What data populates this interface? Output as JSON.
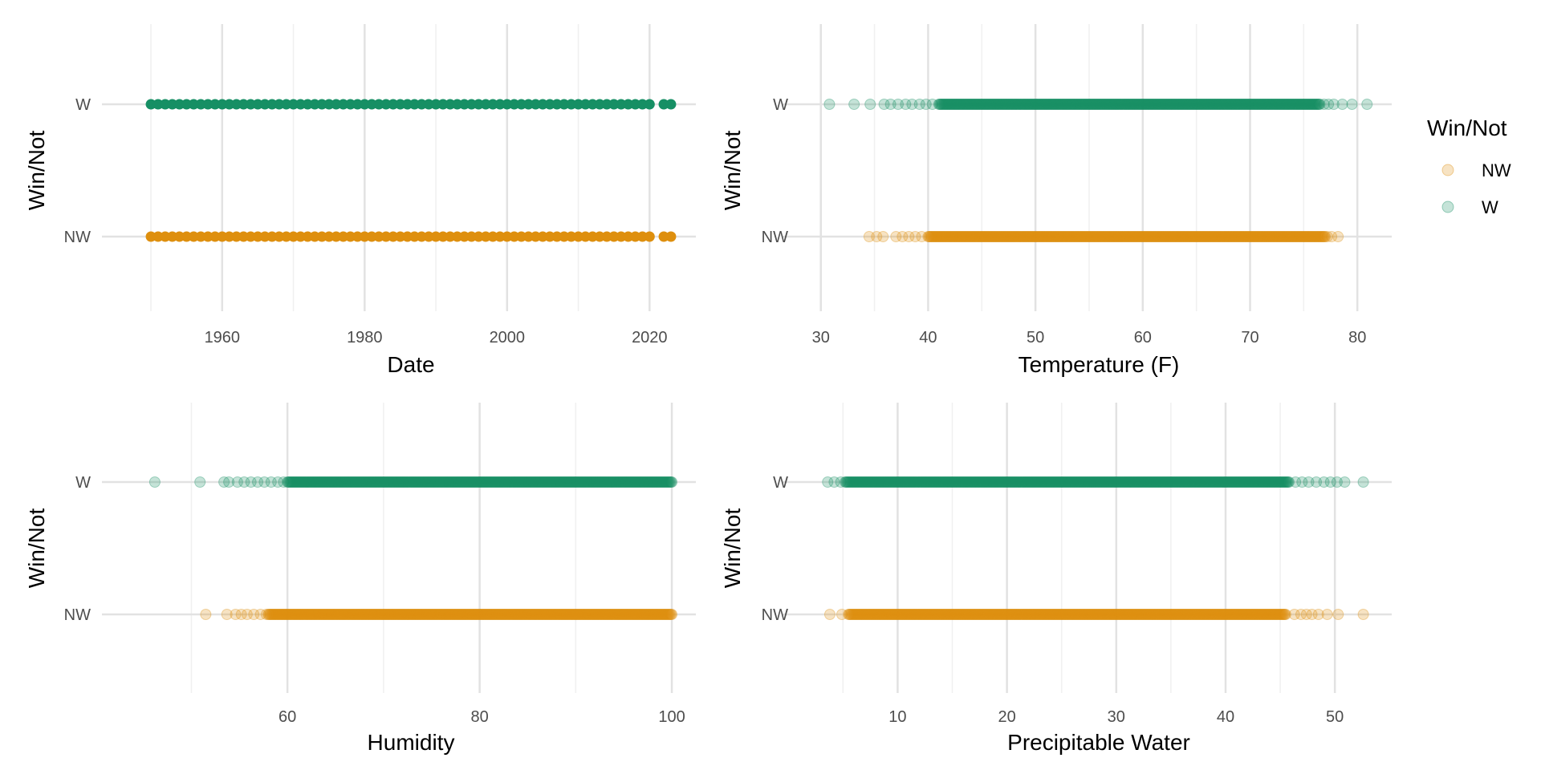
{
  "colors": {
    "NW": "#DE8F0E",
    "W": "#168F64",
    "grid_major": "#E2E2E2",
    "grid_minor": "#F0F0F0"
  },
  "legend": {
    "title": "Win/Not",
    "items": [
      {
        "key": "NW",
        "label": "NW"
      },
      {
        "key": "W",
        "label": "W"
      }
    ]
  },
  "chart_data": [
    {
      "type": "scatter",
      "title": "",
      "xlabel": "Date",
      "ylabel": "Win/Not",
      "categories": [
        "NW",
        "W"
      ],
      "xlim": [
        1946.5,
        2026.5
      ],
      "xticks": [
        1960,
        1980,
        2000,
        2020
      ],
      "xtick_labels": [
        "1960",
        "1980",
        "2000",
        "2020"
      ],
      "x_minor": [
        1950,
        1970,
        1990,
        2010
      ],
      "grid": true,
      "series": [
        {
          "name": "NW",
          "range": [
            1950,
            2023
          ],
          "step": 1,
          "gap": [
            2020.3,
            2021.7
          ],
          "alpha": 1.0
        },
        {
          "name": "W",
          "range": [
            1950,
            2023
          ],
          "step": 1,
          "gap": [
            2020.3,
            2021.7
          ],
          "alpha": 1.0
        }
      ]
    },
    {
      "type": "scatter",
      "title": "",
      "xlabel": "Temperature (F)",
      "ylabel": "Win/Not",
      "categories": [
        "NW",
        "W"
      ],
      "xlim": [
        28.6,
        83.2
      ],
      "xticks": [
        30,
        40,
        50,
        60,
        70,
        80
      ],
      "xtick_labels": [
        "30",
        "40",
        "50",
        "60",
        "70",
        "80"
      ],
      "x_minor": [
        35,
        45,
        55,
        65,
        75
      ],
      "grid": true,
      "series": [
        {
          "name": "NW",
          "dense_range": [
            40,
            77
          ],
          "sparse_points": [
            34.5,
            35.2,
            35.8,
            37.0,
            37.6,
            38.2,
            38.8,
            39.4,
            77.2,
            77.6,
            78.2
          ],
          "alpha": 0.25
        },
        {
          "name": "W",
          "dense_range": [
            41,
            76.5
          ],
          "sparse_points": [
            30.8,
            33.1,
            34.6,
            35.9,
            36.5,
            37.2,
            37.9,
            38.5,
            39.2,
            39.8,
            40.4,
            76.9,
            77.3,
            77.8,
            78.6,
            79.5,
            80.9
          ],
          "alpha": 0.25
        }
      ]
    },
    {
      "type": "scatter",
      "title": "",
      "xlabel": "Humidity",
      "ylabel": "Win/Not",
      "categories": [
        "NW",
        "W"
      ],
      "xlim": [
        43.2,
        102.5
      ],
      "xticks": [
        60,
        80,
        100
      ],
      "xtick_labels": [
        "60",
        "80",
        "100"
      ],
      "x_minor": [
        50,
        70,
        90
      ],
      "grid": true,
      "series": [
        {
          "name": "NW",
          "dense_range": [
            58,
            100
          ],
          "sparse_points": [
            51.5,
            53.7,
            54.6,
            55.2,
            55.8,
            56.5,
            57.2,
            57.8
          ],
          "alpha": 0.25
        },
        {
          "name": "W",
          "dense_range": [
            60,
            100
          ],
          "sparse_points": [
            46.2,
            50.9,
            53.4,
            53.9,
            54.8,
            55.5,
            56.2,
            56.9,
            57.6,
            58.3,
            59.0,
            59.6
          ],
          "alpha": 0.25
        }
      ]
    },
    {
      "type": "scatter",
      "title": "",
      "xlabel": "Precipitable Water",
      "ylabel": "Win/Not",
      "categories": [
        "NW",
        "W"
      ],
      "xlim": [
        1.6,
        55.2
      ],
      "xticks": [
        10,
        20,
        30,
        40,
        50
      ],
      "xtick_labels": [
        "10",
        "20",
        "30",
        "40",
        "50"
      ],
      "x_minor": [
        5,
        15,
        25,
        35,
        45
      ],
      "grid": true,
      "series": [
        {
          "name": "NW",
          "dense_range": [
            5.5,
            45.5
          ],
          "sparse_points": [
            3.8,
            4.9,
            46.3,
            46.9,
            47.4,
            47.9,
            48.5,
            49.3,
            50.3,
            52.6
          ],
          "alpha": 0.25
        },
        {
          "name": "W",
          "dense_range": [
            5.2,
            45.8
          ],
          "sparse_points": [
            3.6,
            4.2,
            4.8,
            46.4,
            47.0,
            47.6,
            48.3,
            49.0,
            49.6,
            50.2,
            50.9,
            52.6
          ],
          "alpha": 0.25
        }
      ]
    }
  ]
}
